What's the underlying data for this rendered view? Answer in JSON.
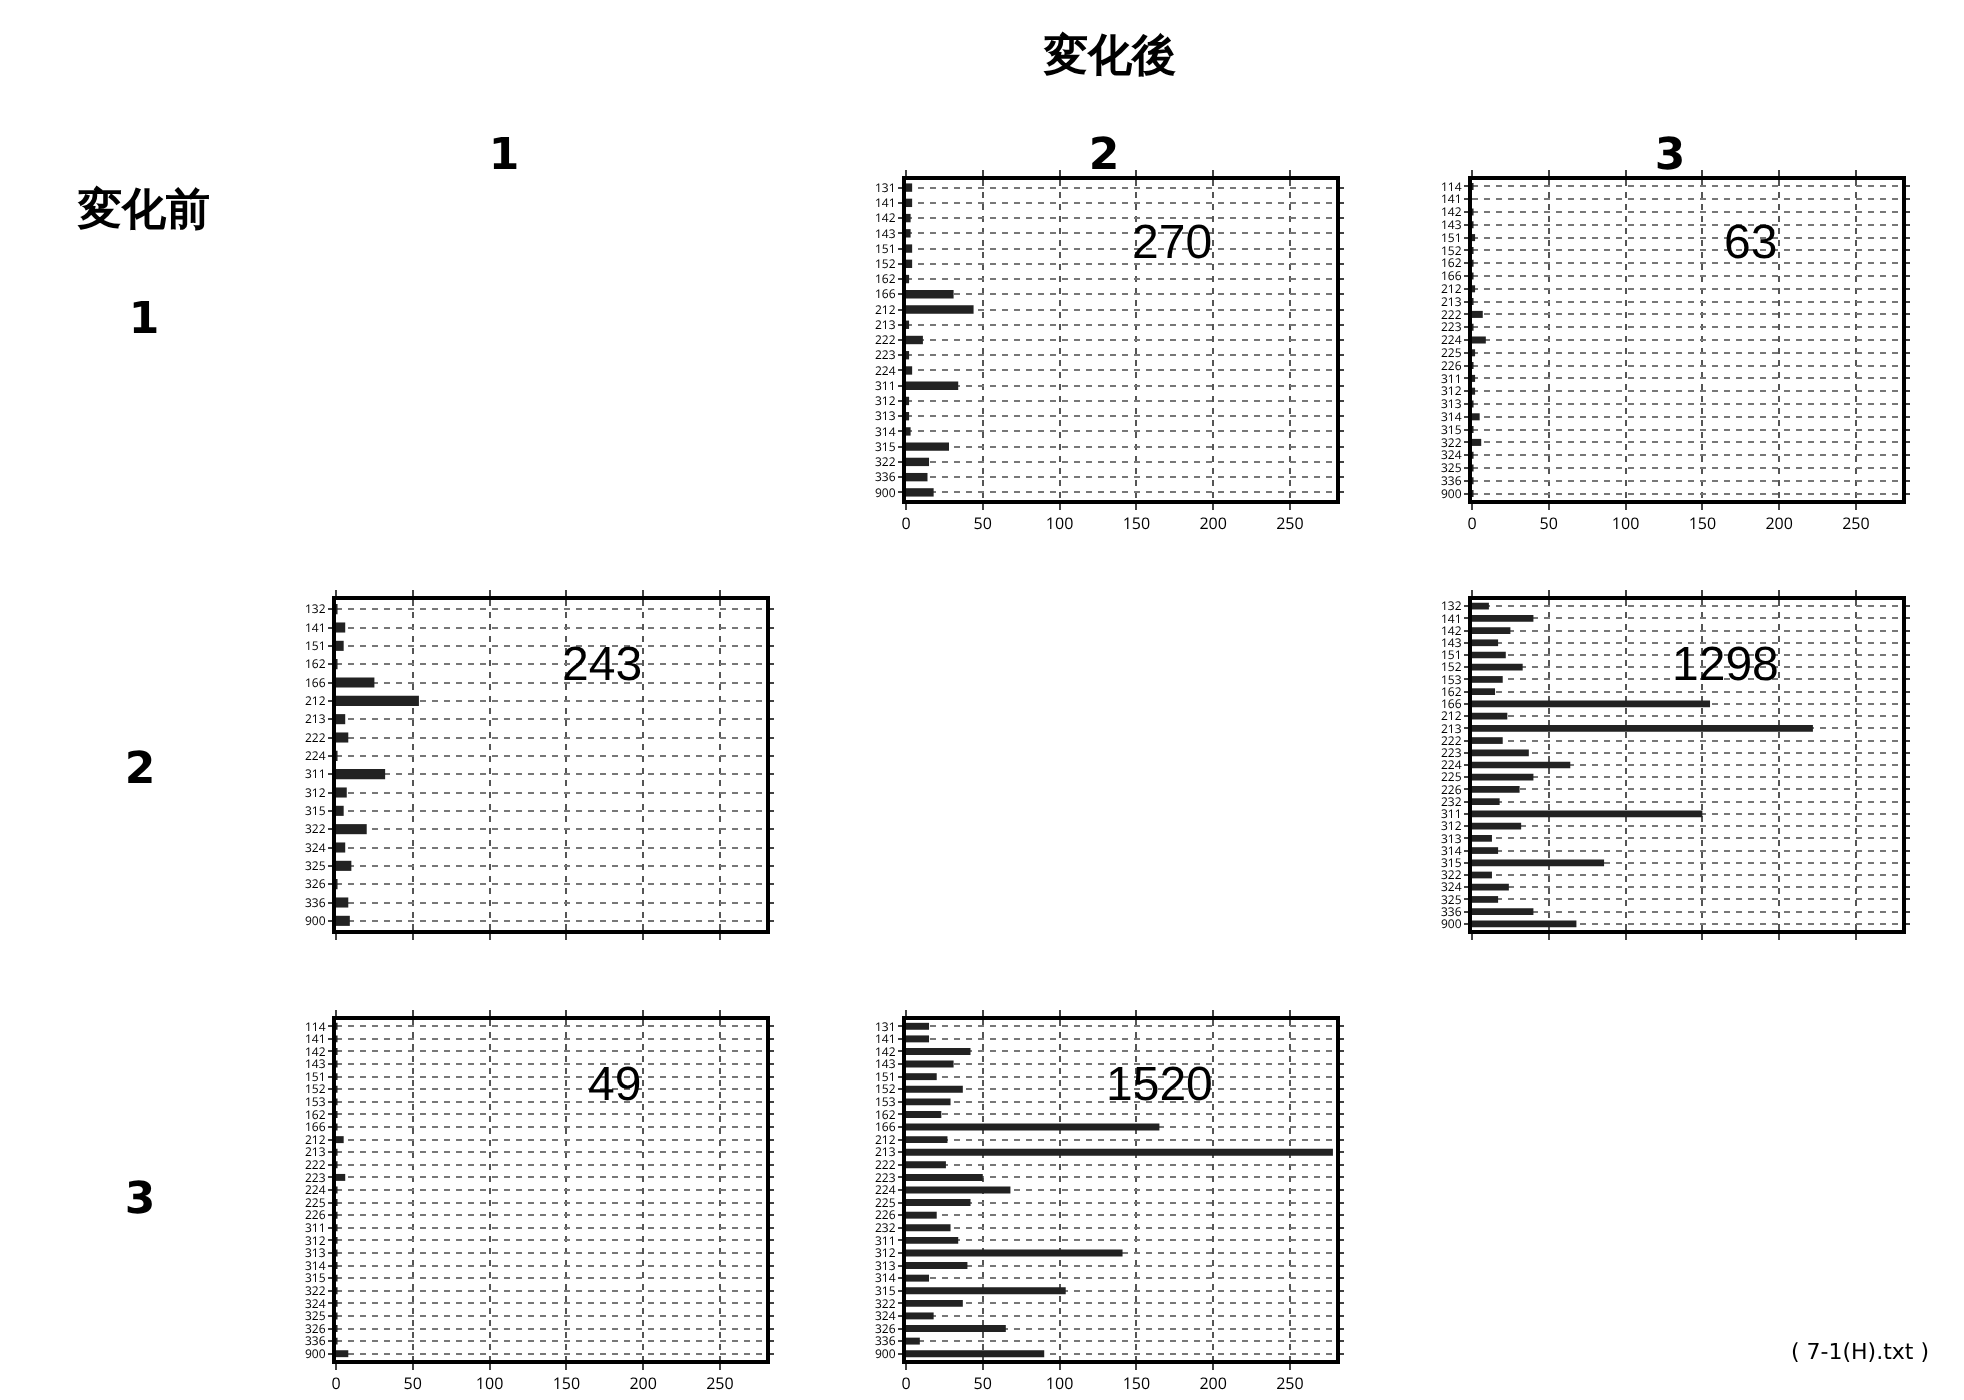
{
  "chart_data": [
    {
      "type": "bar",
      "orientation": "horizontal",
      "categories": [
        "131",
        "141",
        "142",
        "143",
        "151",
        "152",
        "162",
        "166",
        "212",
        "213",
        "222",
        "223",
        "224",
        "311",
        "312",
        "313",
        "314",
        "315",
        "322",
        "336",
        "900"
      ],
      "values": [
        4,
        4,
        3,
        3,
        4,
        4,
        2,
        31,
        44,
        2,
        11,
        2,
        4,
        34,
        2,
        2,
        3,
        28,
        15,
        14,
        18
      ],
      "color": "#222222",
      "xlim": [
        0,
        280
      ],
      "xticks": [
        0,
        50,
        100,
        150,
        200,
        250
      ],
      "grid": true,
      "annotations": [
        "270"
      ]
    },
    {
      "type": "bar",
      "orientation": "horizontal",
      "categories": [
        "114",
        "141",
        "142",
        "143",
        "151",
        "152",
        "162",
        "166",
        "212",
        "213",
        "222",
        "223",
        "224",
        "225",
        "226",
        "311",
        "312",
        "313",
        "314",
        "315",
        "322",
        "324",
        "325",
        "336",
        "900"
      ],
      "values": [
        1,
        0,
        1,
        1,
        2,
        1,
        1,
        1,
        2,
        1,
        7,
        1,
        9,
        2,
        1,
        2,
        2,
        1,
        5,
        1,
        6,
        1,
        1,
        1,
        1
      ],
      "color": "#222222",
      "xlim": [
        0,
        280
      ],
      "xticks": [
        0,
        50,
        100,
        150,
        200,
        250
      ],
      "grid": true,
      "annotations": [
        "63"
      ]
    },
    {
      "type": "bar",
      "orientation": "horizontal",
      "categories": [
        "132",
        "141",
        "151",
        "162",
        "166",
        "212",
        "213",
        "222",
        "224",
        "311",
        "312",
        "315",
        "322",
        "324",
        "325",
        "326",
        "336",
        "900"
      ],
      "values": [
        1,
        6,
        5,
        1,
        25,
        54,
        6,
        8,
        1,
        32,
        7,
        5,
        20,
        6,
        10,
        1,
        8,
        9
      ],
      "color": "#222222",
      "xlim": [
        0,
        280
      ],
      "xticks": [
        0,
        50,
        100,
        150,
        200,
        250
      ],
      "grid": true,
      "tick_labels": "y",
      "annotations": [
        "243"
      ]
    },
    {
      "type": "bar",
      "orientation": "horizontal",
      "categories": [
        "132",
        "141",
        "142",
        "143",
        "151",
        "152",
        "153",
        "162",
        "166",
        "212",
        "213",
        "222",
        "223",
        "224",
        "225",
        "226",
        "232",
        "311",
        "312",
        "313",
        "314",
        "315",
        "322",
        "324",
        "325",
        "336",
        "900"
      ],
      "values": [
        11,
        40,
        25,
        17,
        22,
        33,
        20,
        15,
        155,
        23,
        222,
        20,
        37,
        64,
        40,
        31,
        18,
        150,
        32,
        13,
        17,
        86,
        13,
        24,
        17,
        40,
        68
      ],
      "color": "#222222",
      "xlim": [
        0,
        280
      ],
      "xticks": [
        0,
        50,
        100,
        150,
        200,
        250
      ],
      "grid": true,
      "tick_labels": "y",
      "annotations": [
        "1298"
      ]
    },
    {
      "type": "bar",
      "orientation": "horizontal",
      "categories": [
        "114",
        "141",
        "142",
        "143",
        "151",
        "152",
        "153",
        "162",
        "166",
        "212",
        "213",
        "222",
        "223",
        "224",
        "225",
        "226",
        "311",
        "312",
        "313",
        "314",
        "315",
        "322",
        "324",
        "325",
        "326",
        "336",
        "900"
      ],
      "values": [
        1,
        1,
        1,
        1,
        1,
        1,
        1,
        1,
        1,
        5,
        1,
        1,
        6,
        1,
        1,
        1,
        1,
        1,
        1,
        1,
        1,
        1,
        1,
        1,
        1,
        1,
        8
      ],
      "color": "#222222",
      "xlim": [
        0,
        280
      ],
      "xticks": [
        0,
        50,
        100,
        150,
        200,
        250
      ],
      "grid": true,
      "annotations": [
        "49"
      ]
    },
    {
      "type": "bar",
      "orientation": "horizontal",
      "categories": [
        "131",
        "141",
        "142",
        "143",
        "151",
        "152",
        "153",
        "162",
        "166",
        "212",
        "213",
        "222",
        "223",
        "224",
        "225",
        "226",
        "232",
        "311",
        "312",
        "313",
        "314",
        "315",
        "322",
        "324",
        "326",
        "336",
        "900"
      ],
      "values": [
        15,
        15,
        42,
        31,
        20,
        37,
        29,
        23,
        165,
        27,
        278,
        26,
        50,
        68,
        42,
        20,
        29,
        34,
        141,
        40,
        15,
        104,
        37,
        18,
        65,
        9,
        90
      ],
      "color": "#222222",
      "xlim": [
        0,
        280
      ],
      "xticks": [
        0,
        50,
        100,
        150,
        200,
        250
      ],
      "grid": true,
      "annotations": [
        "1520"
      ]
    },
    {
      "type": "other",
      "title": "変化後",
      "annotations": [
        "変化前",
        "1",
        "2",
        "3",
        "1",
        "2",
        "3",
        "( 7-1(H).txt )"
      ]
    }
  ]
}
